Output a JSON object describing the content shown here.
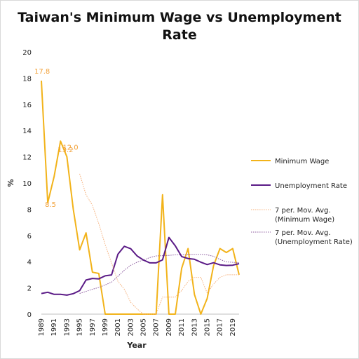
{
  "chart_data": {
    "type": "line",
    "title": "Taiwan's Minimum Wage vs Unemployment Rate",
    "xlabel": "Year",
    "ylabel": "%",
    "x_range": [
      1989,
      2020
    ],
    "ylim": [
      0,
      20
    ],
    "y_ticks": [
      0,
      2,
      4,
      6,
      8,
      10,
      12,
      14,
      16,
      18,
      20
    ],
    "x_tick_labels": [
      "1989",
      "1991",
      "1993",
      "1995",
      "1997",
      "1999",
      "2001",
      "2003",
      "2005",
      "2007",
      "2009",
      "2011",
      "2013",
      "2015",
      "2017",
      "2019"
    ],
    "grid": false,
    "legend_position": "right",
    "series": [
      {
        "name": "Minimum Wage",
        "color": "#f2b31a",
        "style": "solid",
        "x": [
          1989,
          1990,
          1991,
          1992,
          1993,
          1994,
          1995,
          1996,
          1997,
          1998,
          1999,
          2000,
          2001,
          2002,
          2003,
          2004,
          2005,
          2006,
          2007,
          2008,
          2009,
          2010,
          2011,
          2012,
          2013,
          2014,
          2015,
          2016,
          2017,
          2018,
          2019,
          2020
        ],
        "values": [
          17.8,
          8.5,
          10.5,
          13.2,
          12.0,
          8.0,
          4.9,
          6.2,
          3.2,
          3.1,
          0,
          0,
          0,
          0,
          0,
          0,
          0,
          0,
          0,
          9.1,
          0,
          0,
          3.5,
          5.0,
          1.5,
          0,
          1.2,
          3.7,
          5.0,
          4.7,
          5.0,
          3.0
        ]
      },
      {
        "name": "Unemployment Rate",
        "color": "#5a1a86",
        "style": "solid",
        "x": [
          1989,
          1990,
          1991,
          1992,
          1993,
          1994,
          1995,
          1996,
          1997,
          1998,
          1999,
          2000,
          2001,
          2002,
          2003,
          2004,
          2005,
          2006,
          2007,
          2008,
          2009,
          2010,
          2011,
          2012,
          2013,
          2014,
          2015,
          2016,
          2017,
          2018,
          2019,
          2020
        ],
        "values": [
          1.57,
          1.67,
          1.51,
          1.51,
          1.45,
          1.56,
          1.79,
          2.6,
          2.72,
          2.69,
          2.92,
          2.99,
          4.57,
          5.17,
          4.99,
          4.44,
          4.13,
          3.91,
          3.91,
          4.14,
          5.85,
          5.21,
          4.39,
          4.24,
          4.18,
          3.96,
          3.78,
          3.92,
          3.76,
          3.71,
          3.73,
          3.85
        ]
      },
      {
        "name": "7 per. Mov. Avg. (Minimum Wage)",
        "color": "#f6b07a",
        "style": "dotted",
        "x": [
          1995,
          1996,
          1997,
          1998,
          1999,
          2000,
          2001,
          2002,
          2003,
          2004,
          2005,
          2006,
          2007,
          2008,
          2009,
          2010,
          2011,
          2012,
          2013,
          2014,
          2015,
          2016,
          2017,
          2018,
          2019,
          2020
        ],
        "values": [
          10.7,
          9.1,
          8.3,
          6.9,
          5.3,
          3.9,
          2.5,
          1.9,
          0.9,
          0.4,
          0,
          0,
          0,
          1.3,
          1.3,
          1.3,
          1.8,
          2.5,
          2.8,
          2.8,
          1.6,
          2.3,
          2.8,
          3.0,
          3.0,
          3.0
        ]
      },
      {
        "name": "7 per. Mov. Avg. (Unemployment Rate)",
        "color": "#8b5a9e",
        "style": "dotted",
        "x": [
          1995,
          1996,
          1997,
          1998,
          1999,
          2000,
          2001,
          2002,
          2003,
          2004,
          2005,
          2006,
          2007,
          2008,
          2009,
          2010,
          2011,
          2012,
          2013,
          2014,
          2015,
          2016,
          2017,
          2018,
          2019,
          2020
        ],
        "values": [
          1.58,
          1.73,
          1.9,
          2.03,
          2.23,
          2.44,
          2.89,
          3.35,
          3.72,
          3.96,
          4.13,
          4.31,
          4.44,
          4.46,
          4.48,
          4.52,
          4.52,
          4.55,
          4.56,
          4.56,
          4.52,
          4.41,
          4.17,
          3.99,
          3.95,
          3.93
        ]
      }
    ],
    "annotations": [
      {
        "text": "17.8",
        "x": 1989,
        "y": 17.8,
        "color": "#f2a23a"
      },
      {
        "text": "13.2",
        "x": 1992,
        "y": 13.2,
        "color": "#f2a23a"
      },
      {
        "text": "12.0",
        "x": 1993,
        "y": 12.0,
        "color": "#f2a23a"
      },
      {
        "text": "8.5",
        "x": 1990,
        "y": 8.5,
        "color": "#f2a23a"
      }
    ]
  }
}
